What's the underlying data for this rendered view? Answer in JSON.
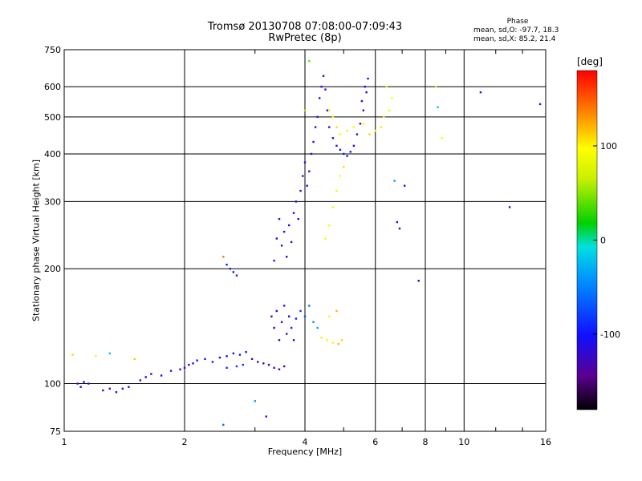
{
  "title_line1": "Tromsø 20130708 07:08:00-07:09:43",
  "title_line2": "RwPretec (8p)",
  "phase_info": {
    "heading": "Phase",
    "line_o": "mean, sd,O: -97.7, 18.3",
    "line_x": "mean, sd,X:  85.2, 21.4"
  },
  "chart_data": {
    "type": "scatter",
    "xlabel": "Frequency [MHz]",
    "ylabel": "Stationary phase Virtual Height [km]",
    "x_scale": "log",
    "y_scale": "log",
    "xlim": [
      1,
      16
    ],
    "ylim": [
      75,
      750
    ],
    "xticks": [
      1,
      2,
      4,
      6,
      8,
      10,
      16
    ],
    "yticks": [
      75,
      100,
      200,
      300,
      400,
      500,
      600,
      750
    ],
    "grid": true,
    "colorbar": {
      "label": "[deg]",
      "range": [
        -180,
        180
      ],
      "ticks": [
        100,
        0,
        -100
      ]
    },
    "points": [
      [
        1.08,
        100,
        -110
      ],
      [
        1.1,
        98,
        -100
      ],
      [
        1.12,
        101,
        -105
      ],
      [
        1.15,
        100,
        -100
      ],
      [
        1.25,
        96,
        -105
      ],
      [
        1.3,
        97,
        -110
      ],
      [
        1.35,
        95,
        -100
      ],
      [
        1.4,
        97,
        -105
      ],
      [
        1.45,
        98,
        -100
      ],
      [
        1.55,
        102,
        -110
      ],
      [
        1.6,
        104,
        -105
      ],
      [
        1.65,
        106,
        -100
      ],
      [
        1.75,
        105,
        -110
      ],
      [
        1.85,
        108,
        -100
      ],
      [
        1.95,
        109,
        -110
      ],
      [
        2.0,
        110,
        -105
      ],
      [
        2.05,
        112,
        -100
      ],
      [
        2.1,
        113,
        -110
      ],
      [
        2.15,
        115,
        -105
      ],
      [
        2.25,
        116,
        -100
      ],
      [
        2.35,
        114,
        -95
      ],
      [
        2.45,
        117,
        -100
      ],
      [
        2.55,
        118,
        -110
      ],
      [
        2.65,
        120,
        -105
      ],
      [
        2.75,
        119,
        -100
      ],
      [
        2.85,
        121,
        -95
      ],
      [
        2.95,
        116,
        -130
      ],
      [
        3.05,
        114,
        -140
      ],
      [
        3.15,
        113,
        -130
      ],
      [
        3.25,
        112,
        -120
      ],
      [
        3.35,
        110,
        -115
      ],
      [
        3.45,
        109,
        -130
      ],
      [
        3.55,
        111,
        -120
      ],
      [
        2.55,
        110,
        -90
      ],
      [
        2.7,
        111,
        -85
      ],
      [
        2.8,
        112,
        -80
      ],
      [
        1.2,
        118,
        100
      ],
      [
        1.3,
        120,
        -20
      ],
      [
        1.5,
        116,
        60
      ],
      [
        2.5,
        78,
        -60
      ],
      [
        1.05,
        119,
        110
      ],
      [
        3.3,
        150,
        -110
      ],
      [
        3.35,
        140,
        -120
      ],
      [
        3.4,
        155,
        -100
      ],
      [
        3.45,
        130,
        -115
      ],
      [
        3.5,
        145,
        -105
      ],
      [
        3.55,
        160,
        -110
      ],
      [
        3.6,
        135,
        -120
      ],
      [
        3.65,
        150,
        -100
      ],
      [
        3.7,
        140,
        -90
      ],
      [
        3.75,
        130,
        -110
      ],
      [
        3.8,
        148,
        -100
      ],
      [
        3.9,
        155,
        -80
      ],
      [
        4.0,
        150,
        -70
      ],
      [
        4.1,
        160,
        -60
      ],
      [
        4.2,
        145,
        -50
      ],
      [
        4.3,
        140,
        -30
      ],
      [
        4.4,
        132,
        80
      ],
      [
        4.55,
        130,
        90
      ],
      [
        4.7,
        128,
        100
      ],
      [
        4.85,
        127,
        120
      ],
      [
        4.95,
        130,
        110
      ],
      [
        4.6,
        150,
        100
      ],
      [
        4.8,
        155,
        120
      ],
      [
        2.55,
        205,
        -90
      ],
      [
        2.6,
        200,
        -95
      ],
      [
        2.65,
        196,
        -100
      ],
      [
        2.7,
        192,
        -95
      ],
      [
        3.35,
        210,
        -120
      ],
      [
        3.4,
        240,
        -125
      ],
      [
        3.45,
        270,
        -120
      ],
      [
        3.5,
        230,
        -115
      ],
      [
        3.55,
        250,
        -120
      ],
      [
        3.6,
        215,
        -125
      ],
      [
        3.65,
        260,
        -115
      ],
      [
        3.7,
        235,
        -120
      ],
      [
        3.75,
        280,
        -110
      ],
      [
        3.8,
        300,
        -115
      ],
      [
        3.85,
        270,
        -120
      ],
      [
        3.9,
        320,
        -105
      ],
      [
        3.95,
        350,
        -110
      ],
      [
        4.0,
        380,
        -115
      ],
      [
        4.05,
        330,
        -110
      ],
      [
        4.1,
        360,
        -105
      ],
      [
        4.15,
        400,
        -115
      ],
      [
        4.2,
        430,
        -110
      ],
      [
        4.25,
        470,
        -120
      ],
      [
        4.3,
        500,
        -115
      ],
      [
        4.35,
        560,
        -120
      ],
      [
        4.4,
        600,
        -110
      ],
      [
        4.45,
        640,
        -115
      ],
      [
        4.5,
        590,
        -105
      ],
      [
        4.55,
        520,
        -110
      ],
      [
        4.6,
        470,
        -115
      ],
      [
        4.7,
        440,
        -105
      ],
      [
        4.8,
        420,
        -110
      ],
      [
        4.9,
        410,
        -100
      ],
      [
        5.0,
        400,
        -105
      ],
      [
        5.1,
        395,
        -110
      ],
      [
        5.2,
        405,
        -100
      ],
      [
        5.3,
        420,
        -105
      ],
      [
        5.4,
        450,
        -110
      ],
      [
        5.5,
        480,
        -115
      ],
      [
        5.6,
        520,
        -110
      ],
      [
        5.7,
        580,
        -115
      ],
      [
        5.75,
        630,
        -120
      ],
      [
        5.65,
        600,
        -110
      ],
      [
        5.55,
        550,
        -105
      ],
      [
        4.6,
        520,
        90
      ],
      [
        4.7,
        500,
        100
      ],
      [
        4.8,
        470,
        110
      ],
      [
        4.9,
        450,
        95
      ],
      [
        5.1,
        460,
        85
      ],
      [
        5.3,
        470,
        90
      ],
      [
        5.6,
        480,
        100
      ],
      [
        5.8,
        450,
        110
      ],
      [
        6.0,
        460,
        95
      ],
      [
        6.2,
        470,
        105
      ],
      [
        6.3,
        500,
        90
      ],
      [
        6.5,
        520,
        85
      ],
      [
        6.6,
        560,
        95
      ],
      [
        6.4,
        600,
        80
      ],
      [
        4.5,
        240,
        90
      ],
      [
        4.6,
        260,
        95
      ],
      [
        4.7,
        290,
        100
      ],
      [
        4.8,
        320,
        90
      ],
      [
        4.9,
        350,
        95
      ],
      [
        5.0,
        370,
        110
      ],
      [
        6.7,
        340,
        -40
      ],
      [
        7.1,
        330,
        -110
      ],
      [
        6.8,
        265,
        -120
      ],
      [
        6.9,
        255,
        -110
      ],
      [
        8.6,
        530,
        -20
      ],
      [
        8.8,
        440,
        100
      ],
      [
        8.5,
        600,
        70
      ],
      [
        11.0,
        580,
        -100
      ],
      [
        13.0,
        290,
        -130
      ],
      [
        15.5,
        540,
        -110
      ],
      [
        7.7,
        186,
        -130
      ],
      [
        4.1,
        700,
        40
      ],
      [
        4.0,
        520,
        60
      ],
      [
        2.5,
        215,
        140
      ],
      [
        3.0,
        90,
        -40
      ],
      [
        3.2,
        82,
        -100
      ]
    ]
  }
}
